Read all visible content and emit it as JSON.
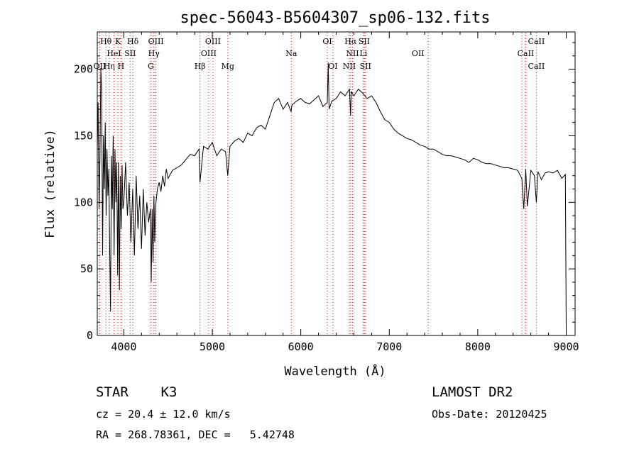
{
  "chart_data": {
    "type": "line",
    "title": "spec-56043-B5604307_sp06-132.fits",
    "xlabel": "Wavelength (Å)",
    "ylabel": "Flux (relative)",
    "xlim": [
      3700,
      9100
    ],
    "ylim": [
      0,
      228
    ],
    "x_ticks": [
      4000,
      5000,
      6000,
      7000,
      8000,
      9000
    ],
    "y_ticks": [
      0,
      50,
      100,
      150,
      200
    ],
    "grid": false,
    "series": [
      {
        "x": [
          3700,
          3710,
          3720,
          3730,
          3740,
          3750,
          3760,
          3770,
          3780,
          3790,
          3800,
          3810,
          3820,
          3830,
          3840,
          3850,
          3860,
          3870,
          3880,
          3890,
          3900,
          3910,
          3920,
          3930,
          3940,
          3950,
          3960,
          3970,
          3980,
          3990,
          4000,
          4020,
          4040,
          4060,
          4080,
          4100,
          4120,
          4140,
          4160,
          4180,
          4200,
          4220,
          4240,
          4260,
          4280,
          4300,
          4310,
          4320,
          4330,
          4340,
          4350,
          4360,
          4380,
          4400,
          4420,
          4440,
          4460,
          4480,
          4500,
          4550,
          4600,
          4650,
          4700,
          4750,
          4800,
          4850,
          4861,
          4900,
          4950,
          5000,
          5050,
          5100,
          5150,
          5175,
          5200,
          5250,
          5300,
          5350,
          5400,
          5450,
          5500,
          5550,
          5600,
          5650,
          5700,
          5750,
          5800,
          5850,
          5890,
          5900,
          5950,
          6000,
          6050,
          6100,
          6150,
          6200,
          6250,
          6300,
          6310,
          6320,
          6350,
          6400,
          6450,
          6500,
          6550,
          6563,
          6570,
          6600,
          6650,
          6700,
          6750,
          6800,
          6850,
          6900,
          6950,
          7000,
          7050,
          7100,
          7150,
          7200,
          7250,
          7300,
          7350,
          7400,
          7450,
          7500,
          7550,
          7600,
          7650,
          7700,
          7750,
          7800,
          7850,
          7900,
          7950,
          8000,
          8050,
          8100,
          8150,
          8200,
          8250,
          8300,
          8350,
          8400,
          8450,
          8498,
          8520,
          8542,
          8560,
          8600,
          8640,
          8662,
          8680,
          8720,
          8760,
          8800,
          8850,
          8900,
          8950,
          8990,
          9000
        ],
        "y": [
          140,
          175,
          95,
          130,
          200,
          185,
          60,
          150,
          110,
          160,
          90,
          140,
          105,
          125,
          70,
          18,
          135,
          95,
          150,
          60,
          140,
          100,
          130,
          45,
          130,
          34,
          120,
          80,
          128,
          95,
          100,
          130,
          90,
          115,
          70,
          110,
          60,
          120,
          80,
          105,
          65,
          110,
          75,
          100,
          85,
          95,
          40,
          95,
          55,
          105,
          70,
          98,
          110,
          115,
          108,
          120,
          112,
          125,
          118,
          124,
          126,
          128,
          132,
          136,
          135,
          140,
          115,
          142,
          140,
          145,
          135,
          140,
          138,
          120,
          142,
          146,
          148,
          145,
          152,
          150,
          156,
          158,
          155,
          165,
          175,
          178,
          170,
          175,
          168,
          173,
          176,
          178,
          175,
          174,
          177,
          180,
          172,
          175,
          205,
          170,
          176,
          178,
          183,
          180,
          185,
          165,
          183,
          180,
          185,
          182,
          178,
          180,
          175,
          168,
          162,
          160,
          155,
          152,
          150,
          148,
          147,
          145,
          143,
          142,
          140,
          140,
          138,
          136,
          135,
          135,
          134,
          133,
          132,
          130,
          133,
          132,
          130,
          129,
          129,
          128,
          127,
          126,
          126,
          125,
          124,
          118,
          95,
          125,
          97,
          124,
          120,
          100,
          123,
          117,
          122,
          123,
          122,
          124,
          118,
          121,
          3
        ]
      }
    ],
    "line_labels": [
      {
        "text": "Hθ",
        "x": 3798,
        "row": 0
      },
      {
        "text": "K",
        "x": 3934,
        "row": 0
      },
      {
        "text": "Hδ",
        "x": 4102,
        "row": 0
      },
      {
        "text": "OIII",
        "x": 4363,
        "row": 0
      },
      {
        "text": "OIII",
        "x": 5007,
        "row": 0
      },
      {
        "text": "OI",
        "x": 6300,
        "row": 0
      },
      {
        "text": "Hα",
        "x": 6563,
        "row": 0
      },
      {
        "text": "SII",
        "x": 6717,
        "row": 0
      },
      {
        "text": "CaII",
        "x": 8662,
        "row": 0
      },
      {
        "text": "HeI",
        "x": 3889,
        "row": 1
      },
      {
        "text": "SII",
        "x": 4072,
        "row": 1
      },
      {
        "text": "Hγ",
        "x": 4340,
        "row": 1
      },
      {
        "text": "OIII",
        "x": 4959,
        "row": 1
      },
      {
        "text": "Na",
        "x": 5893,
        "row": 1
      },
      {
        "text": "NII",
        "x": 6584,
        "row": 1
      },
      {
        "text": "Li",
        "x": 6708,
        "row": 1
      },
      {
        "text": "OII",
        "x": 7325,
        "row": 1
      },
      {
        "text": "CaII",
        "x": 8542,
        "row": 1
      },
      {
        "text": "OII",
        "x": 3727,
        "row": 2
      },
      {
        "text": "Hη",
        "x": 3835,
        "row": 2
      },
      {
        "text": "H",
        "x": 3968,
        "row": 2
      },
      {
        "text": "G",
        "x": 4305,
        "row": 2
      },
      {
        "text": "Hβ",
        "x": 4861,
        "row": 2
      },
      {
        "text": "Mg",
        "x": 5175,
        "row": 2
      },
      {
        "text": "OI",
        "x": 6363,
        "row": 2
      },
      {
        "text": "NII",
        "x": 6548,
        "row": 2
      },
      {
        "text": "SII",
        "x": 6731,
        "row": 2
      },
      {
        "text": "CaII",
        "x": 8662,
        "row": 2
      }
    ],
    "line_markers": [
      3727,
      3798,
      3835,
      3889,
      3934,
      3968,
      4072,
      4102,
      4305,
      4340,
      4363,
      4861,
      4959,
      5007,
      5175,
      5893,
      6300,
      6363,
      6548,
      6563,
      6584,
      6708,
      6717,
      6731,
      7440,
      8498,
      8542,
      8662
    ],
    "colors": {
      "spectrum": "#000000",
      "markers": "#e00000",
      "axes": "#000000"
    }
  },
  "info": {
    "object": "STAR    K3",
    "survey": "LAMOST DR2",
    "cz": "cz = 20.4 ± 12.0 km/s",
    "obs_date": "Obs-Date: 20120425",
    "coords": "RA = 268.78361, DEC =   5.42748"
  }
}
